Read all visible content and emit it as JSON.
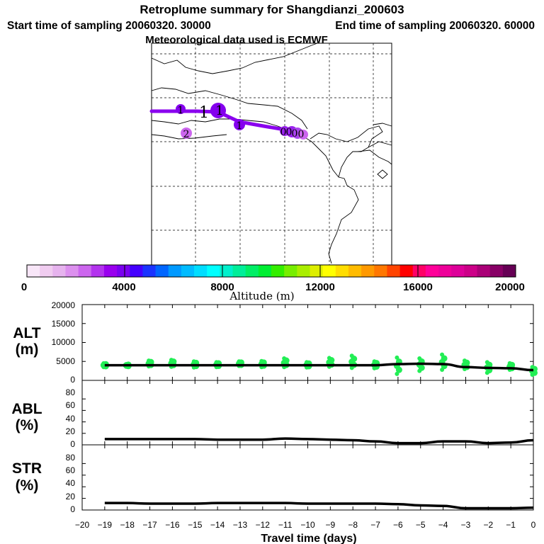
{
  "header": {
    "title": "Retroplume summary for Shangdianzi_200603",
    "start_label": "Start time of sampling 20060320. 30000",
    "end_label": "End time of sampling 20060320. 60000",
    "met_label": "Meteorological data used is ECMWF"
  },
  "colorbar": {
    "title": "Altitude (m)",
    "tick_labels": [
      "0",
      "4000",
      "8000",
      "12000",
      "16000",
      "20000"
    ],
    "colors": [
      "#f8e6f8",
      "#f0ccf0",
      "#e6b3ee",
      "#dc90ee",
      "#cc66ee",
      "#b333ee",
      "#9900ee",
      "#7a00f0",
      "#4400ff",
      "#1a33ff",
      "#0066ff",
      "#0099ff",
      "#00bbff",
      "#00ddff",
      "#00ffff",
      "#00f0cc",
      "#00ee99",
      "#00ee66",
      "#00ee33",
      "#33ee00",
      "#77ee00",
      "#aaee00",
      "#ddee00",
      "#ffff00",
      "#ffdd00",
      "#ffbb00",
      "#ff9900",
      "#ff7700",
      "#ff4400",
      "#ff0000",
      "#ff0066",
      "#ff0099",
      "#ee0099",
      "#dd0099",
      "#cc0088",
      "#aa0077",
      "#880066",
      "#660055"
    ]
  },
  "map_labels": [
    "1",
    "1",
    "1",
    "1",
    "2",
    "0",
    "0",
    "0",
    "0"
  ],
  "chart_data": [
    {
      "type": "line",
      "panel": "ALT",
      "ylabel": "ALT",
      "yunit": "(m)",
      "ylim": [
        0,
        20000
      ],
      "yticks": [
        "20000",
        "15000",
        "10000",
        "5000",
        "0"
      ],
      "x": [
        -19,
        -18,
        -17,
        -16,
        -15,
        -14,
        -13,
        -12,
        -11,
        -10,
        -9,
        -8,
        -7,
        -6,
        -5,
        -4,
        -3,
        -2,
        -1,
        0
      ],
      "values": [
        4000,
        4000,
        4000,
        4000,
        4000,
        4000,
        4000,
        4000,
        4000,
        4000,
        4000,
        4000,
        4000,
        4300,
        4400,
        4300,
        3500,
        3300,
        3200,
        2700
      ],
      "scatter": [
        {
          "x": -19,
          "values": [
            3500,
            4500
          ]
        },
        {
          "x": -18,
          "values": [
            3600,
            4300
          ]
        },
        {
          "x": -17,
          "values": [
            3700,
            5200
          ]
        },
        {
          "x": -16,
          "values": [
            3600,
            5400
          ]
        },
        {
          "x": -15,
          "values": [
            3400,
            5000
          ]
        },
        {
          "x": -14,
          "values": [
            3500,
            4800
          ]
        },
        {
          "x": -13,
          "values": [
            3800,
            5000
          ]
        },
        {
          "x": -12,
          "values": [
            3500,
            5100
          ]
        },
        {
          "x": -11,
          "values": [
            3500,
            5800
          ]
        },
        {
          "x": -10,
          "values": [
            3400,
            4800
          ]
        },
        {
          "x": -9,
          "values": [
            3600,
            5900
          ]
        },
        {
          "x": -8,
          "values": [
            3300,
            6500
          ]
        },
        {
          "x": -7,
          "values": [
            3200,
            5000
          ]
        },
        {
          "x": -6,
          "values": [
            1700,
            6000
          ]
        },
        {
          "x": -5,
          "values": [
            2500,
            5800
          ]
        },
        {
          "x": -4,
          "values": [
            2800,
            6800
          ]
        },
        {
          "x": -3,
          "values": [
            3000,
            5200
          ]
        },
        {
          "x": -2,
          "values": [
            2000,
            4800
          ]
        },
        {
          "x": -1,
          "values": [
            2800,
            4500
          ]
        },
        {
          "x": 0,
          "values": [
            1500,
            3500
          ]
        }
      ]
    },
    {
      "type": "line",
      "panel": "ABL",
      "ylabel": "ABL",
      "yunit": "(%)",
      "ylim": [
        0,
        100
      ],
      "yticks": [
        "80",
        "60",
        "40",
        "20",
        "0"
      ],
      "x": [
        -19,
        -18,
        -17,
        -16,
        -15,
        -14,
        -13,
        -12,
        -11,
        -10,
        -9,
        -8,
        -7,
        -6,
        -5,
        -4,
        -3,
        -2,
        -1,
        0
      ],
      "values": [
        10,
        10,
        10,
        10,
        10,
        9,
        9,
        9,
        11,
        10,
        9,
        8,
        6,
        3,
        3,
        6,
        6,
        3,
        4,
        8
      ]
    },
    {
      "type": "line",
      "panel": "STR",
      "ylabel": "STR",
      "yunit": "(%)",
      "ylim": [
        0,
        100
      ],
      "yticks": [
        "80",
        "60",
        "40",
        "20",
        "0"
      ],
      "x": [
        -19,
        -18,
        -17,
        -16,
        -15,
        -14,
        -13,
        -12,
        -11,
        -10,
        -9,
        -8,
        -7,
        -6,
        -5,
        -4,
        -3,
        -2,
        -1,
        0
      ],
      "values": [
        12,
        12,
        11,
        11,
        11,
        12,
        12,
        12,
        12,
        11,
        11,
        11,
        11,
        10,
        8,
        7,
        3,
        3,
        3,
        4
      ],
      "xlabel": "Travel time (days)",
      "xtick_labels": [
        "−20",
        "−19",
        "−18",
        "−17",
        "−16",
        "−15",
        "−14",
        "−13",
        "−12",
        "−11",
        "−10",
        "−9",
        "−8",
        "−7",
        "−6",
        "−5",
        "−4",
        "−3",
        "−2",
        "−1",
        "0"
      ]
    }
  ]
}
